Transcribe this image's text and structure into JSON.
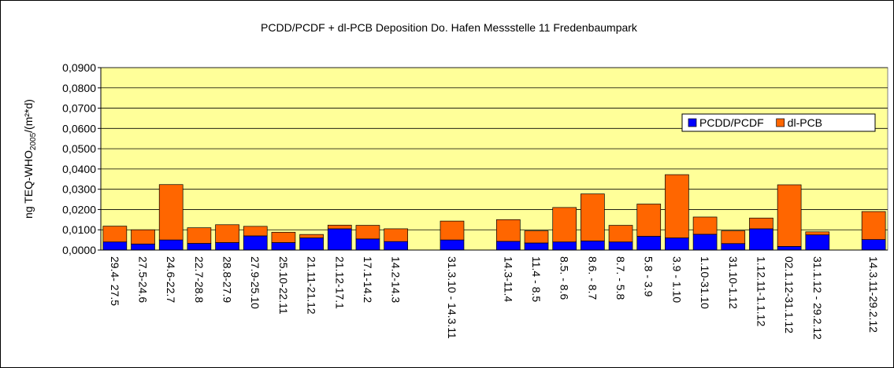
{
  "chart_data": {
    "type": "bar",
    "stacked": true,
    "title": "PCDD/PCDF + dl-PCB  Deposition Do. Hafen Messstelle 11  Fredenbaumpark",
    "y_label": [
      "ng TEQ-WHO",
      "2005",
      "/(m²*d)"
    ],
    "categories": [
      "29.4- 27.5",
      "27.5-24.6",
      "24.6-22.7",
      "22.7-28.8",
      "28.8-27.9",
      "27.9-25.10",
      "25.10-22.11",
      "21.11-21.12",
      "21.12-17.1",
      "17.1-14.2",
      "14.2-14.3",
      null,
      "31.3.10 - 14.3.11",
      null,
      "14.3-11.4",
      "11.4 - 8.5",
      "8.5. - 8.6",
      "8.6. - 8.7",
      "8.7. - 5.8",
      "5.8 - 3.9",
      "3.9 - 1.10",
      "1.10-31.10",
      "31.10-1.12",
      "1.12.11-1.1.12",
      "02.1.12-31.1.12",
      "31.1.12 - 29.2.12",
      null,
      "14.3.11-29.2.12"
    ],
    "series": [
      {
        "name": "PCDD/PCDF",
        "color": "#0000ff",
        "values": [
          0.004,
          0.003,
          0.005,
          0.0033,
          0.0037,
          0.007,
          0.0037,
          0.006,
          0.0105,
          0.0055,
          0.0042,
          null,
          0.005,
          null,
          0.0043,
          0.0035,
          0.004,
          0.0045,
          0.004,
          0.0068,
          0.006,
          0.0078,
          0.0032,
          0.0105,
          0.0018,
          0.0075,
          null,
          0.0052
        ]
      },
      {
        "name": "dl-PCB",
        "color": "#ff6600",
        "values": [
          0.0078,
          0.007,
          0.0273,
          0.0077,
          0.0088,
          0.0047,
          0.0051,
          0.0017,
          0.0018,
          0.0067,
          0.0063,
          null,
          0.0093,
          null,
          0.0107,
          0.006,
          0.017,
          0.0232,
          0.0082,
          0.0159,
          0.0312,
          0.0085,
          0.0063,
          0.0053,
          0.0304,
          0.0015,
          null,
          0.0138
        ]
      }
    ],
    "ylim": [
      0,
      0.09
    ],
    "yticks": [
      {
        "value": 0,
        "label": "0,0000"
      },
      {
        "value": 0.01,
        "label": "0,0100"
      },
      {
        "value": 0.02,
        "label": "0,0200"
      },
      {
        "value": 0.03,
        "label": "0,0300"
      },
      {
        "value": 0.04,
        "label": "0,0400"
      },
      {
        "value": 0.05,
        "label": "0,0500"
      },
      {
        "value": 0.06,
        "label": "0,0600"
      },
      {
        "value": 0.07,
        "label": "0,0700"
      },
      {
        "value": 0.08,
        "label": "0,0800"
      },
      {
        "value": 0.09,
        "label": "0,0900"
      }
    ],
    "grid": true,
    "legend": "upper right",
    "background": "#ffff99"
  }
}
